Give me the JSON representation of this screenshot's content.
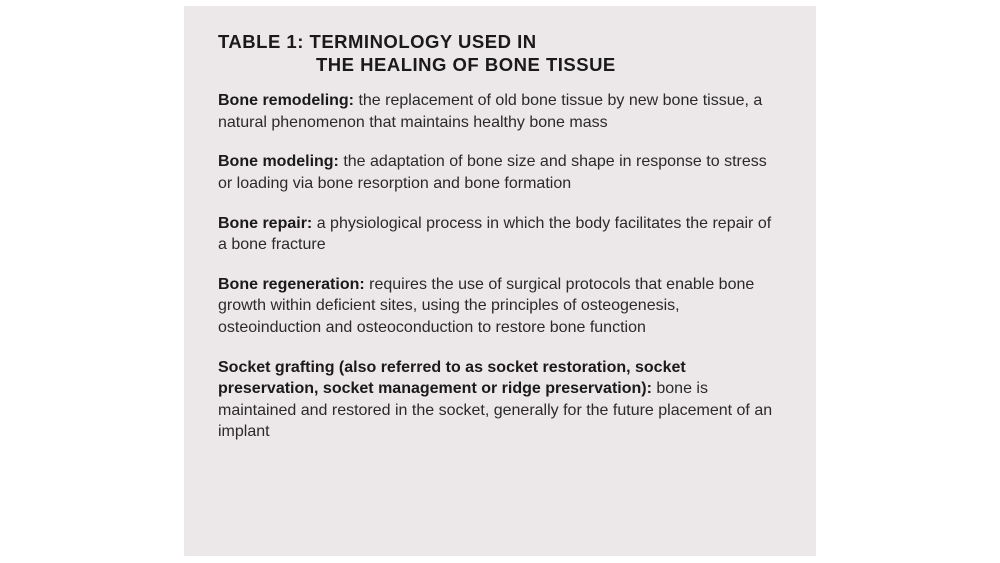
{
  "panel": {
    "background_color": "#ece7e9",
    "text_color": "#2a2a2a",
    "heading_color": "#1a1a1a"
  },
  "title": {
    "line1": "Table 1: Terminology used in",
    "line2": "the healing of bone tissue",
    "fontsize": 18.5,
    "weight": 900,
    "letter_spacing": 0.5
  },
  "entries": [
    {
      "term": "Bone remodeling:",
      "def": " the replacement of old bone tissue by new bone tissue, a natural phenomenon that maintains healthy bone mass"
    },
    {
      "term": "Bone modeling:",
      "def": " the adaptation of bone size and shape in response to stress or loading via bone resorption and bone formation"
    },
    {
      "term": "Bone repair:",
      "def": " a physiological process in which the body facilitates the repair of a bone fracture"
    },
    {
      "term": "Bone regeneration:",
      "def": " requires the use of surgical protocols that enable bone growth within deficient sites, using the principles of osteogenesis, osteoinduction and osteoconduction to restore bone function"
    },
    {
      "term": "Socket grafting (also referred to as socket restoration, socket preservation, socket management or ridge preservation):",
      "def": " bone is maintained and restored in the socket, generally for the future placement of an implant"
    }
  ],
  "body_fontsize": 16,
  "body_lineheight": 1.35,
  "entry_gap": 18
}
